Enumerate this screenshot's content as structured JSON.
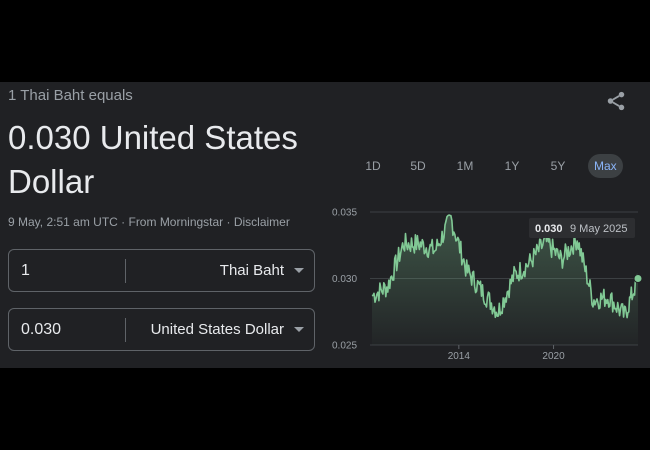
{
  "header": {
    "equals_label": "1 Thai Baht equals",
    "rate_value": "0.030 United States Dollar"
  },
  "meta": {
    "timestamp": "9 May, 2:51 am UTC",
    "separator": " · ",
    "source": "From Morningstar",
    "disclaimer": "Disclaimer"
  },
  "converter": {
    "from": {
      "amount": "1",
      "currency": "Thai Baht"
    },
    "to": {
      "amount": "0.030",
      "currency": "United States Dollar"
    }
  },
  "ranges": [
    "1D",
    "5D",
    "1M",
    "1Y",
    "5Y",
    "Max"
  ],
  "active_range": "Max",
  "colors": {
    "accent": "#8ab4f8",
    "line": "#81c995",
    "background": "#202124"
  },
  "icons": {
    "share": "share-icon",
    "dropdown": "chevron-down-icon"
  },
  "tooltip": {
    "value": "0.030",
    "date": "9 May 2025"
  },
  "chart_data": {
    "type": "line",
    "ylim": [
      0.025,
      0.035
    ],
    "y_ticks": [
      "0.035",
      "0.030",
      "0.025"
    ],
    "x_ticks": [
      "2014",
      "2020"
    ],
    "x": [
      2008.5,
      2009.5,
      2010.5,
      2011.5,
      2012.5,
      2013.5,
      2014.5,
      2015.5,
      2016.5,
      2017.5,
      2018.5,
      2019.5,
      2020.5,
      2021.5,
      2022.5,
      2023.5,
      2024.5,
      2025.35
    ],
    "y": [
      0.0287,
      0.0294,
      0.0326,
      0.0326,
      0.0321,
      0.0345,
      0.0306,
      0.029,
      0.0275,
      0.0302,
      0.0312,
      0.0328,
      0.0314,
      0.033,
      0.0284,
      0.0286,
      0.0272,
      0.03
    ],
    "grid": true,
    "last_point": {
      "x": 2025.35,
      "y": 0.03
    }
  }
}
